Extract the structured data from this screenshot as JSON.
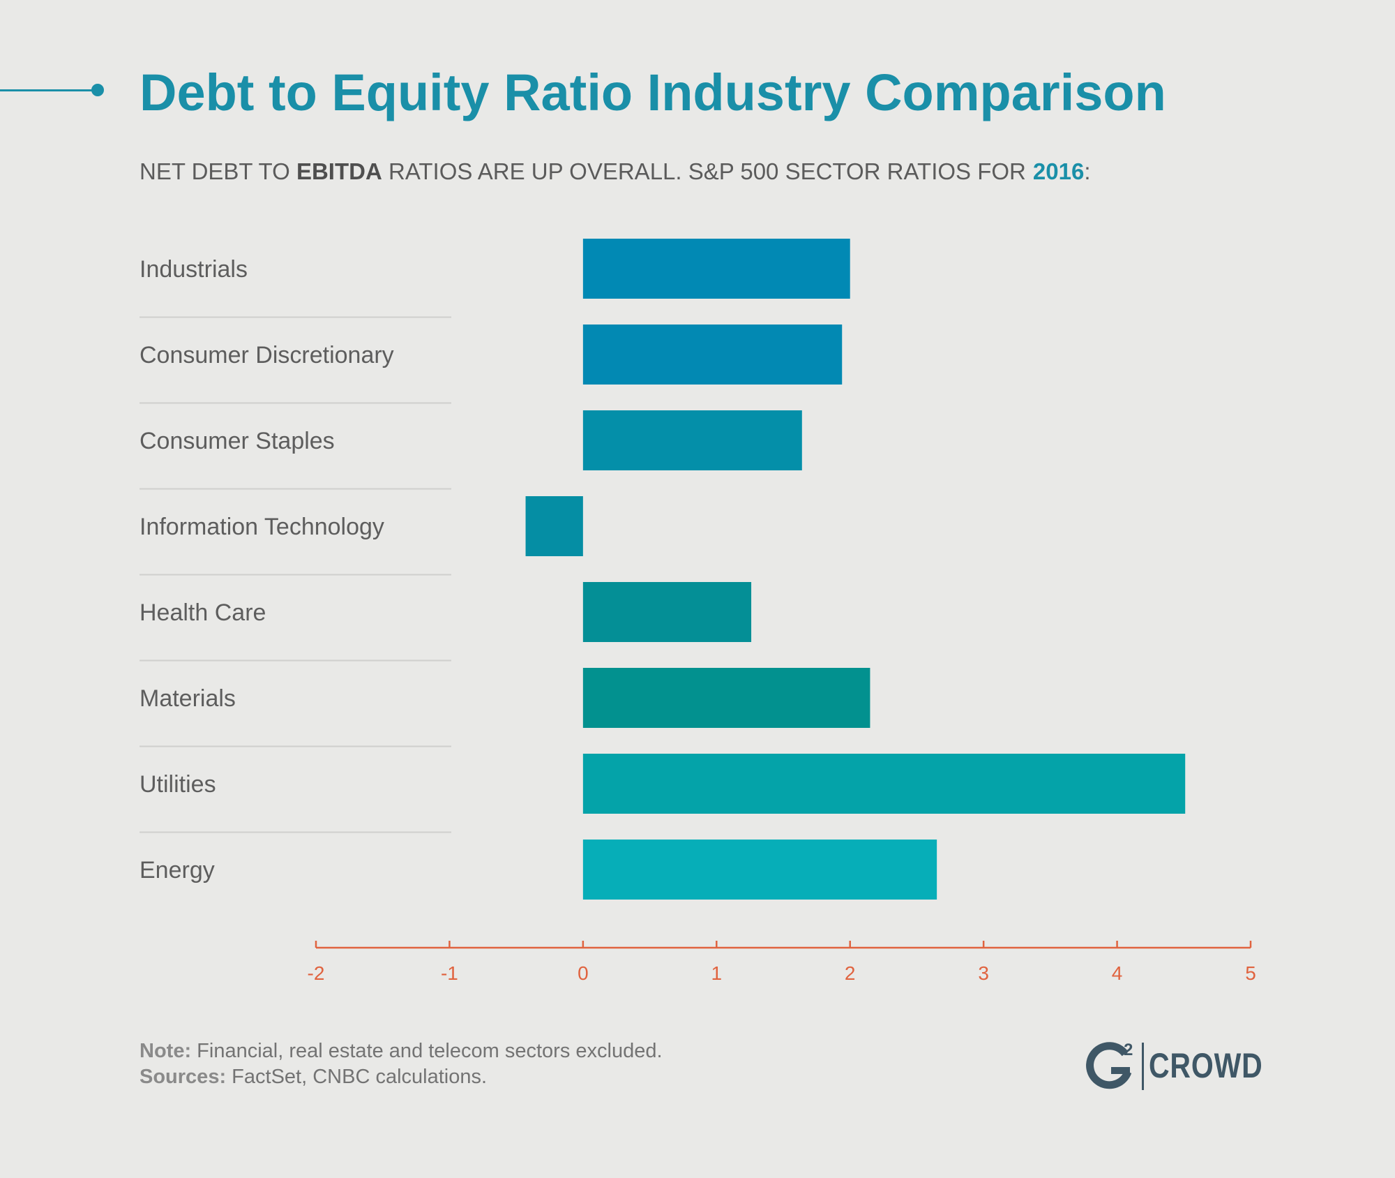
{
  "title": "Debt to Equity Ratio Industry Comparison",
  "subtitle": {
    "part1": "NET DEBT TO ",
    "bold": "EBITDA",
    "part2": " RATIOS ARE UP OVERALL. S&P 500 SECTOR RATIOS FOR",
    "year": "2016",
    "end": ":"
  },
  "chart_data": {
    "type": "bar",
    "orientation": "horizontal",
    "categories": [
      "Industrials",
      "Consumer Discretionary",
      "Consumer Staples",
      "Information Technology",
      "Health Care",
      "Materials",
      "Utilities",
      "Energy"
    ],
    "values": [
      2.0,
      1.94,
      1.64,
      -0.43,
      1.26,
      2.15,
      4.51,
      2.65
    ],
    "xlim": [
      -2,
      5
    ],
    "xticks": [
      "-2",
      "-1",
      "0",
      "1",
      "2",
      "3",
      "4",
      "5"
    ],
    "colors": [
      "#0189b4",
      "#0289b3",
      "#048fa9",
      "#058ea4",
      "#048f96",
      "#02918f",
      "#04a3a9",
      "#06aeb8"
    ],
    "axis_color": "#e0633f"
  },
  "footnote": {
    "note_label": "Note:",
    "note_text": " Financial, real estate and telecom sectors excluded.",
    "sources_label": "Sources:",
    "sources_text": " FactSet, CNBC calculations."
  },
  "logo": {
    "mark_digit": "2",
    "text": "CROWD"
  }
}
